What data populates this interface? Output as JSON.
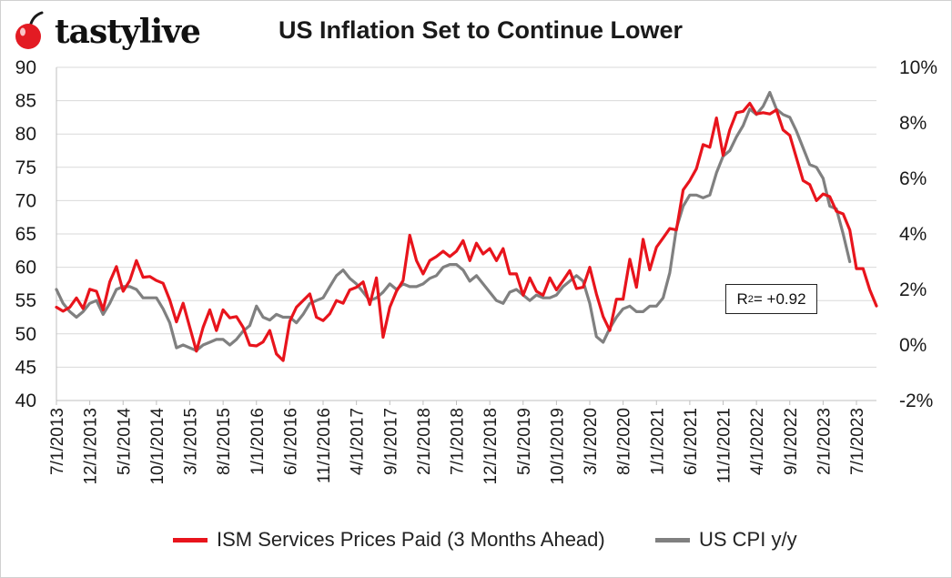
{
  "brand": {
    "logo_text": "tastylive",
    "logo_icon": "cherry-icon",
    "icon_color": "#e31b23"
  },
  "title": "US Inflation Set to Continue Lower",
  "annotation": {
    "r_label": "R",
    "r_exp": "2",
    "r_value": " = +0.92"
  },
  "colors": {
    "ism": "#e8141c",
    "cpi": "#808080",
    "grid": "#d9d9d9"
  },
  "chart_data": {
    "type": "line",
    "title": "US Inflation Set to Continue Lower",
    "x_start": "2013-07",
    "x_end": "2023-10",
    "tick_labels": [
      "7/1/2013",
      "12/1/2013",
      "5/1/2014",
      "10/1/2014",
      "3/1/2015",
      "8/1/2015",
      "1/1/2016",
      "6/1/2016",
      "11/1/2016",
      "4/1/2017",
      "9/1/2017",
      "2/1/2018",
      "7/1/2018",
      "12/1/2018",
      "5/1/2019",
      "10/1/2019",
      "3/1/2020",
      "8/1/2020",
      "1/1/2021",
      "6/1/2021",
      "11/1/2021",
      "4/1/2022",
      "9/1/2022",
      "2/1/2023",
      "7/1/2023"
    ],
    "y_left": {
      "ticks": [
        "90",
        "85",
        "80",
        "75",
        "70",
        "65",
        "60",
        "55",
        "50",
        "45",
        "40"
      ],
      "range": [
        40,
        90
      ]
    },
    "y_right": {
      "ticks": [
        "10%",
        "8%",
        "6%",
        "4%",
        "2%",
        "0%",
        "-2%"
      ],
      "range": [
        -2,
        10
      ]
    },
    "legend_position": "bottom",
    "series": [
      {
        "name": "ISM Services Prices Paid (3 Months Ahead)",
        "axis": "left",
        "anchors": [
          [
            "2013-07",
            54.0
          ],
          [
            "2013-08",
            53.4
          ],
          [
            "2013-09",
            54.0
          ],
          [
            "2013-10",
            55.4
          ],
          [
            "2013-11",
            53.8
          ],
          [
            "2013-12",
            56.7
          ],
          [
            "2014-01",
            56.4
          ],
          [
            "2014-02",
            53.6
          ],
          [
            "2014-03",
            57.8
          ],
          [
            "2014-04",
            60.1
          ],
          [
            "2014-05",
            56.4
          ],
          [
            "2014-06",
            58.0
          ],
          [
            "2014-07",
            61.0
          ],
          [
            "2014-08",
            58.5
          ],
          [
            "2014-09",
            58.6
          ],
          [
            "2014-10",
            58.0
          ],
          [
            "2014-11",
            57.6
          ],
          [
            "2014-12",
            55.1
          ],
          [
            "2015-01",
            51.8
          ],
          [
            "2015-02",
            54.6
          ],
          [
            "2015-03",
            51.0
          ],
          [
            "2015-04",
            47.4
          ],
          [
            "2015-05",
            51.0
          ],
          [
            "2015-06",
            53.6
          ],
          [
            "2015-07",
            50.5
          ],
          [
            "2015-08",
            53.6
          ],
          [
            "2015-09",
            52.4
          ],
          [
            "2015-10",
            52.6
          ],
          [
            "2015-11",
            51.0
          ],
          [
            "2015-12",
            48.3
          ],
          [
            "2016-01",
            48.2
          ],
          [
            "2016-02",
            48.8
          ],
          [
            "2016-03",
            50.5
          ],
          [
            "2016-04",
            47.0
          ],
          [
            "2016-05",
            46.0
          ],
          [
            "2016-06",
            51.9
          ],
          [
            "2016-07",
            54.0
          ],
          [
            "2016-08",
            55.0
          ],
          [
            "2016-09",
            56.0
          ],
          [
            "2016-10",
            52.5
          ],
          [
            "2016-11",
            52.0
          ],
          [
            "2016-12",
            53.0
          ],
          [
            "2017-01",
            55.0
          ],
          [
            "2017-02",
            54.6
          ],
          [
            "2017-03",
            56.6
          ],
          [
            "2017-04",
            57.0
          ],
          [
            "2017-05",
            57.8
          ],
          [
            "2017-06",
            54.4
          ],
          [
            "2017-07",
            58.4
          ],
          [
            "2017-08",
            49.5
          ],
          [
            "2017-09",
            54.0
          ],
          [
            "2017-10",
            56.4
          ],
          [
            "2017-11",
            58.0
          ],
          [
            "2017-12",
            64.8
          ],
          [
            "2018-01",
            61.0
          ],
          [
            "2018-02",
            59.0
          ],
          [
            "2018-03",
            61.0
          ],
          [
            "2018-04",
            61.6
          ],
          [
            "2018-05",
            62.4
          ],
          [
            "2018-06",
            61.6
          ],
          [
            "2018-07",
            62.4
          ],
          [
            "2018-08",
            64.0
          ],
          [
            "2018-09",
            61.0
          ],
          [
            "2018-10",
            63.6
          ],
          [
            "2018-11",
            62.0
          ],
          [
            "2018-12",
            62.8
          ],
          [
            "2019-01",
            61.0
          ],
          [
            "2019-02",
            62.8
          ],
          [
            "2019-03",
            59.0
          ],
          [
            "2019-04",
            59.0
          ],
          [
            "2019-05",
            55.8
          ],
          [
            "2019-06",
            58.4
          ],
          [
            "2019-07",
            56.4
          ],
          [
            "2019-08",
            55.8
          ],
          [
            "2019-09",
            58.4
          ],
          [
            "2019-10",
            56.6
          ],
          [
            "2019-11",
            58.0
          ],
          [
            "2019-12",
            59.5
          ],
          [
            "2020-01",
            56.8
          ],
          [
            "2020-02",
            57.0
          ],
          [
            "2020-03",
            60.0
          ],
          [
            "2020-04",
            56.0
          ],
          [
            "2020-05",
            52.6
          ],
          [
            "2020-06",
            50.5
          ],
          [
            "2020-07",
            55.2
          ],
          [
            "2020-08",
            55.2
          ],
          [
            "2020-09",
            61.2
          ],
          [
            "2020-10",
            57.0
          ],
          [
            "2020-11",
            64.2
          ],
          [
            "2020-12",
            59.6
          ],
          [
            "2021-01",
            63.0
          ],
          [
            "2021-02",
            64.4
          ],
          [
            "2021-03",
            65.8
          ],
          [
            "2021-04",
            65.6
          ],
          [
            "2021-05",
            71.6
          ],
          [
            "2021-06",
            73.0
          ],
          [
            "2021-07",
            74.8
          ],
          [
            "2021-08",
            78.4
          ],
          [
            "2021-09",
            78.0
          ],
          [
            "2021-10",
            82.4
          ],
          [
            "2021-11",
            76.8
          ],
          [
            "2021-12",
            80.6
          ],
          [
            "2022-01",
            83.2
          ],
          [
            "2022-02",
            83.4
          ],
          [
            "2022-03",
            84.6
          ],
          [
            "2022-04",
            83.0
          ],
          [
            "2022-05",
            83.2
          ],
          [
            "2022-06",
            83.0
          ],
          [
            "2022-07",
            83.6
          ],
          [
            "2022-08",
            80.6
          ],
          [
            "2022-09",
            79.8
          ],
          [
            "2022-10",
            76.4
          ],
          [
            "2022-11",
            73.0
          ],
          [
            "2022-12",
            72.4
          ],
          [
            "2023-01",
            70.0
          ],
          [
            "2023-02",
            71.0
          ],
          [
            "2023-03",
            70.6
          ],
          [
            "2023-04",
            68.4
          ],
          [
            "2023-05",
            68.0
          ],
          [
            "2023-06",
            65.6
          ],
          [
            "2023-07",
            59.8
          ],
          [
            "2023-08",
            59.8
          ],
          [
            "2023-09",
            56.6
          ],
          [
            "2023-10",
            54.2
          ]
        ]
      },
      {
        "name": "US CPI y/y",
        "axis": "right",
        "anchors": [
          [
            "2013-07",
            2.0
          ],
          [
            "2013-08",
            1.5
          ],
          [
            "2013-09",
            1.2
          ],
          [
            "2013-10",
            1.0
          ],
          [
            "2013-11",
            1.2
          ],
          [
            "2013-12",
            1.5
          ],
          [
            "2014-01",
            1.6
          ],
          [
            "2014-02",
            1.1
          ],
          [
            "2014-03",
            1.5
          ],
          [
            "2014-04",
            2.0
          ],
          [
            "2014-05",
            2.1
          ],
          [
            "2014-06",
            2.1
          ],
          [
            "2014-07",
            2.0
          ],
          [
            "2014-08",
            1.7
          ],
          [
            "2014-09",
            1.7
          ],
          [
            "2014-10",
            1.7
          ],
          [
            "2014-11",
            1.3
          ],
          [
            "2014-12",
            0.8
          ],
          [
            "2015-01",
            -0.1
          ],
          [
            "2015-02",
            0.0
          ],
          [
            "2015-03",
            -0.1
          ],
          [
            "2015-04",
            -0.2
          ],
          [
            "2015-05",
            0.0
          ],
          [
            "2015-06",
            0.1
          ],
          [
            "2015-07",
            0.2
          ],
          [
            "2015-08",
            0.2
          ],
          [
            "2015-09",
            0.0
          ],
          [
            "2015-10",
            0.2
          ],
          [
            "2015-11",
            0.5
          ],
          [
            "2015-12",
            0.7
          ],
          [
            "2016-01",
            1.4
          ],
          [
            "2016-02",
            1.0
          ],
          [
            "2016-03",
            0.9
          ],
          [
            "2016-04",
            1.1
          ],
          [
            "2016-05",
            1.0
          ],
          [
            "2016-06",
            1.0
          ],
          [
            "2016-07",
            0.8
          ],
          [
            "2016-08",
            1.1
          ],
          [
            "2016-09",
            1.5
          ],
          [
            "2016-10",
            1.6
          ],
          [
            "2016-11",
            1.7
          ],
          [
            "2016-12",
            2.1
          ],
          [
            "2017-01",
            2.5
          ],
          [
            "2017-02",
            2.7
          ],
          [
            "2017-03",
            2.4
          ],
          [
            "2017-04",
            2.2
          ],
          [
            "2017-05",
            1.9
          ],
          [
            "2017-06",
            1.6
          ],
          [
            "2017-07",
            1.7
          ],
          [
            "2017-08",
            1.9
          ],
          [
            "2017-09",
            2.2
          ],
          [
            "2017-10",
            2.0
          ],
          [
            "2017-11",
            2.2
          ],
          [
            "2017-12",
            2.1
          ],
          [
            "2018-01",
            2.1
          ],
          [
            "2018-02",
            2.2
          ],
          [
            "2018-03",
            2.4
          ],
          [
            "2018-04",
            2.5
          ],
          [
            "2018-05",
            2.8
          ],
          [
            "2018-06",
            2.9
          ],
          [
            "2018-07",
            2.9
          ],
          [
            "2018-08",
            2.7
          ],
          [
            "2018-09",
            2.3
          ],
          [
            "2018-10",
            2.5
          ],
          [
            "2018-11",
            2.2
          ],
          [
            "2018-12",
            1.9
          ],
          [
            "2019-01",
            1.6
          ],
          [
            "2019-02",
            1.5
          ],
          [
            "2019-03",
            1.9
          ],
          [
            "2019-04",
            2.0
          ],
          [
            "2019-05",
            1.8
          ],
          [
            "2019-06",
            1.6
          ],
          [
            "2019-07",
            1.8
          ],
          [
            "2019-08",
            1.7
          ],
          [
            "2019-09",
            1.7
          ],
          [
            "2019-10",
            1.8
          ],
          [
            "2019-11",
            2.1
          ],
          [
            "2019-12",
            2.3
          ],
          [
            "2020-01",
            2.5
          ],
          [
            "2020-02",
            2.3
          ],
          [
            "2020-03",
            1.5
          ],
          [
            "2020-04",
            0.3
          ],
          [
            "2020-05",
            0.1
          ],
          [
            "2020-06",
            0.6
          ],
          [
            "2020-07",
            1.0
          ],
          [
            "2020-08",
            1.3
          ],
          [
            "2020-09",
            1.4
          ],
          [
            "2020-10",
            1.2
          ],
          [
            "2020-11",
            1.2
          ],
          [
            "2020-12",
            1.4
          ],
          [
            "2021-01",
            1.4
          ],
          [
            "2021-02",
            1.7
          ],
          [
            "2021-03",
            2.6
          ],
          [
            "2021-04",
            4.2
          ],
          [
            "2021-05",
            5.0
          ],
          [
            "2021-06",
            5.4
          ],
          [
            "2021-07",
            5.4
          ],
          [
            "2021-08",
            5.3
          ],
          [
            "2021-09",
            5.4
          ],
          [
            "2021-10",
            6.2
          ],
          [
            "2021-11",
            6.8
          ],
          [
            "2021-12",
            7.0
          ],
          [
            "2022-01",
            7.5
          ],
          [
            "2022-02",
            7.9
          ],
          [
            "2022-03",
            8.5
          ],
          [
            "2022-04",
            8.3
          ],
          [
            "2022-05",
            8.6
          ],
          [
            "2022-06",
            9.1
          ],
          [
            "2022-07",
            8.5
          ],
          [
            "2022-08",
            8.3
          ],
          [
            "2022-09",
            8.2
          ],
          [
            "2022-10",
            7.7
          ],
          [
            "2022-11",
            7.1
          ],
          [
            "2022-12",
            6.5
          ],
          [
            "2023-01",
            6.4
          ],
          [
            "2023-02",
            6.0
          ],
          [
            "2023-03",
            5.0
          ],
          [
            "2023-04",
            4.9
          ],
          [
            "2023-05",
            4.0
          ],
          [
            "2023-06",
            3.0
          ]
        ]
      }
    ]
  }
}
